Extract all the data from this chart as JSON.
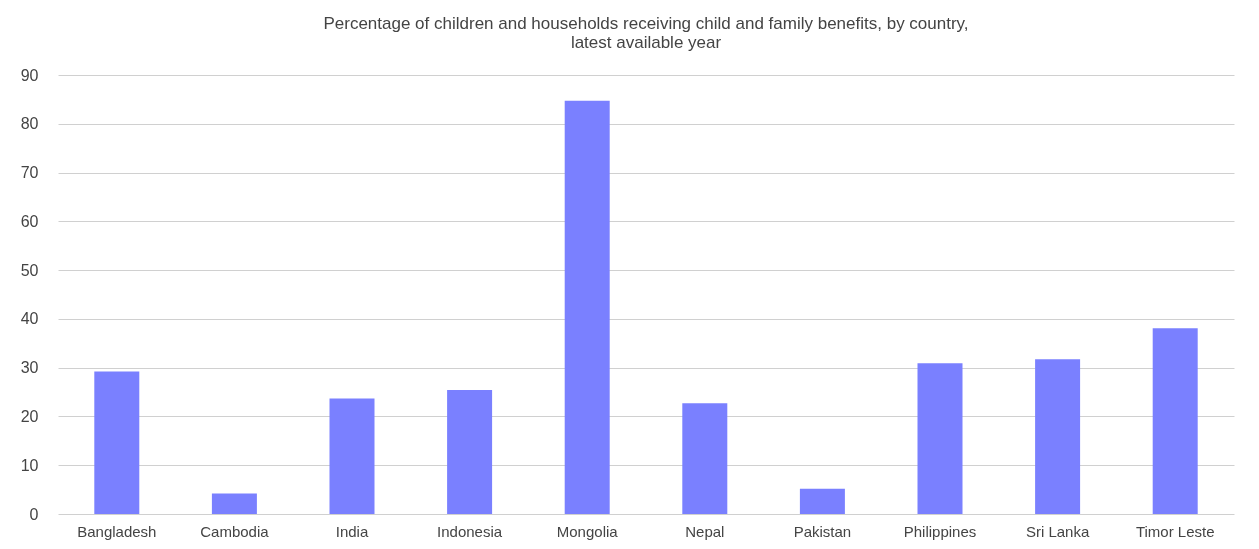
{
  "chart_data": {
    "type": "bar",
    "title": [
      "Percentage of children and households receiving child and family benefits, by country,",
      "latest available year"
    ],
    "categories": [
      "Bangladesh",
      "Cambodia",
      "India",
      "Indonesia",
      "Mongolia",
      "Nepal",
      "Pakistan",
      "Philippines",
      "Sri Lanka",
      "Timor Leste"
    ],
    "values": [
      29.2,
      4.2,
      23.7,
      25.4,
      84.7,
      22.7,
      5.2,
      30.9,
      31.7,
      38.1
    ],
    "color": "#7a80ff",
    "ylim": [
      0,
      90
    ],
    "yticks": [
      0,
      10,
      20,
      30,
      40,
      50,
      60,
      70,
      80,
      90
    ],
    "grid": "y"
  }
}
